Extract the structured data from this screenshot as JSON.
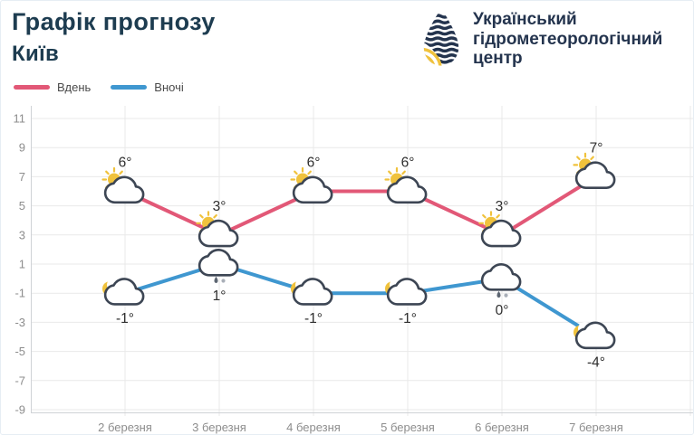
{
  "colors": {
    "title": "#1d3c50",
    "navy": "#24344e",
    "yellow": "#f0c23c",
    "day": "#e25877",
    "night": "#3f97d0",
    "grid": "#e9e9e9",
    "axis": "#cfd2d6",
    "muted": "#8d8d8d",
    "temp": "#2e2e2e",
    "cloud": "#3d4654"
  },
  "header": {
    "title": "Графік прогнозу",
    "subtitle": "Київ",
    "logo": {
      "org_lines": [
        "Український",
        "гідрометеорологічний",
        "центр"
      ]
    }
  },
  "legend": [
    {
      "label": "Вдень",
      "color": "#e25877"
    },
    {
      "label": "Вночі",
      "color": "#3f97d0"
    }
  ],
  "chart_data": {
    "type": "line",
    "title": "Графік прогнозу",
    "subtitle": "Київ",
    "categories": [
      "2 березня",
      "3 березня",
      "4 березня",
      "5 березня",
      "6 березня",
      "7 березня"
    ],
    "series": [
      {
        "name": "Вдень",
        "color": "#e25877",
        "values": [
          6,
          3,
          6,
          6,
          3,
          7
        ],
        "label_position": "above",
        "icons": [
          "sun-cloud",
          "sun-cloud",
          "sun-cloud",
          "sun-cloud",
          "sun-cloud",
          "sun-cloud"
        ]
      },
      {
        "name": "Вночі",
        "color": "#3f97d0",
        "values": [
          -1,
          1,
          -1,
          -1,
          0,
          -4
        ],
        "label_position": "below",
        "icons": [
          "moon-cloud",
          "mixed-precip-cloud",
          "moon-cloud",
          "moon-cloud",
          "mixed-precip-cloud",
          "moon-cloud"
        ]
      }
    ],
    "unit": "°",
    "yticks": [
      11,
      9,
      7,
      5,
      3,
      1,
      -1,
      -3,
      -5,
      -7,
      -9
    ],
    "ylim": [
      -9,
      11
    ],
    "grid": true,
    "legend_position": "top-left",
    "legend_entries": [
      "Вдень",
      "Вночі"
    ]
  }
}
